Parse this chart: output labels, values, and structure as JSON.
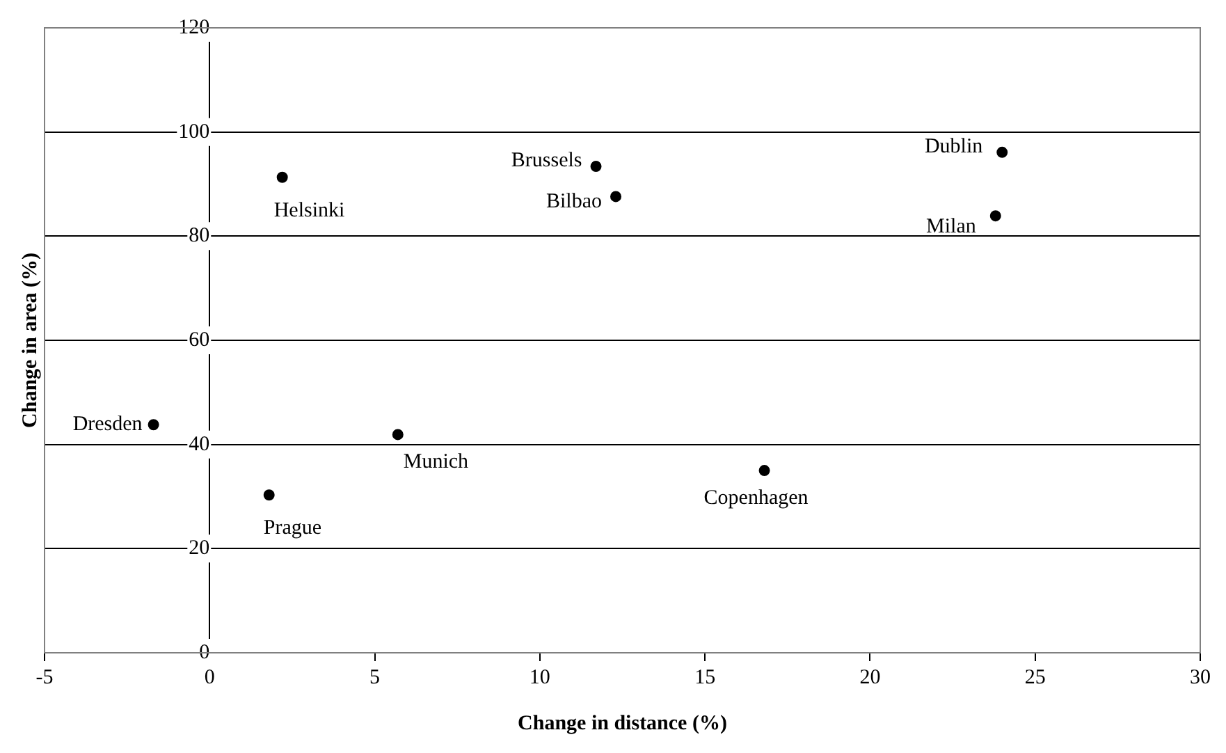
{
  "chart_data": {
    "type": "scatter",
    "xlabel": "Change in distance (%)",
    "ylabel": "Change in area (%)",
    "x": [
      -1.7,
      2.2,
      1.8,
      5.7,
      11.7,
      12.3,
      16.8,
      24.0,
      23.8
    ],
    "values": [
      43.8,
      91.3,
      30.3,
      41.9,
      93.4,
      87.6,
      35.0,
      96.1,
      83.9
    ],
    "color": "#000000",
    "marker": "circle",
    "grid": "y",
    "legend": false,
    "xlim": [
      -5,
      30
    ],
    "xticks": [
      -5,
      0,
      5,
      10,
      15,
      20,
      25,
      30
    ],
    "ylim": [
      0,
      120
    ],
    "yticks": [
      0,
      20,
      40,
      60,
      80,
      100,
      120
    ],
    "annotations": [
      {
        "text": "Dresden",
        "x": -1.7,
        "y": 43.8
      },
      {
        "text": "Helsinki",
        "x": 2.2,
        "y": 91.3
      },
      {
        "text": "Prague",
        "x": 1.8,
        "y": 30.3
      },
      {
        "text": "Munich",
        "x": 5.7,
        "y": 41.9
      },
      {
        "text": "Brussels",
        "x": 11.7,
        "y": 93.4
      },
      {
        "text": "Bilbao",
        "x": 12.3,
        "y": 87.6
      },
      {
        "text": "Copenhagen",
        "x": 16.8,
        "y": 35.0
      },
      {
        "text": "Dublin",
        "x": 24.0,
        "y": 96.1
      },
      {
        "text": "Milan",
        "x": 23.8,
        "y": 83.9
      }
    ]
  }
}
